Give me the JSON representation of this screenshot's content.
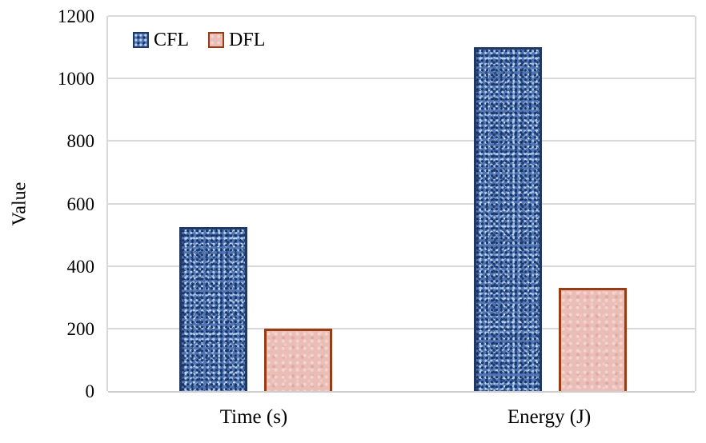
{
  "chart_data": {
    "type": "bar",
    "title": "",
    "categories": [
      "Time (s)",
      "Energy (J)"
    ],
    "series": [
      {
        "name": "CFL",
        "values": [
          525,
          1100
        ],
        "fill": "#4f75b5",
        "border": "#1f3864"
      },
      {
        "name": "DFL",
        "values": [
          200,
          330
        ],
        "fill": "#eabdb7",
        "border": "#963d16"
      }
    ],
    "xlabel": "",
    "ylabel": "Value",
    "ylim": [
      0,
      1200
    ],
    "yticks": [
      0,
      200,
      400,
      600,
      800,
      1000,
      1200
    ],
    "grid": "horizontal",
    "legend_position": "top-left-inside",
    "colors": {
      "gridline": "#d9d9d9",
      "axis_line": "#cdcdcd",
      "text": "#000000",
      "background": "#ffffff"
    }
  }
}
